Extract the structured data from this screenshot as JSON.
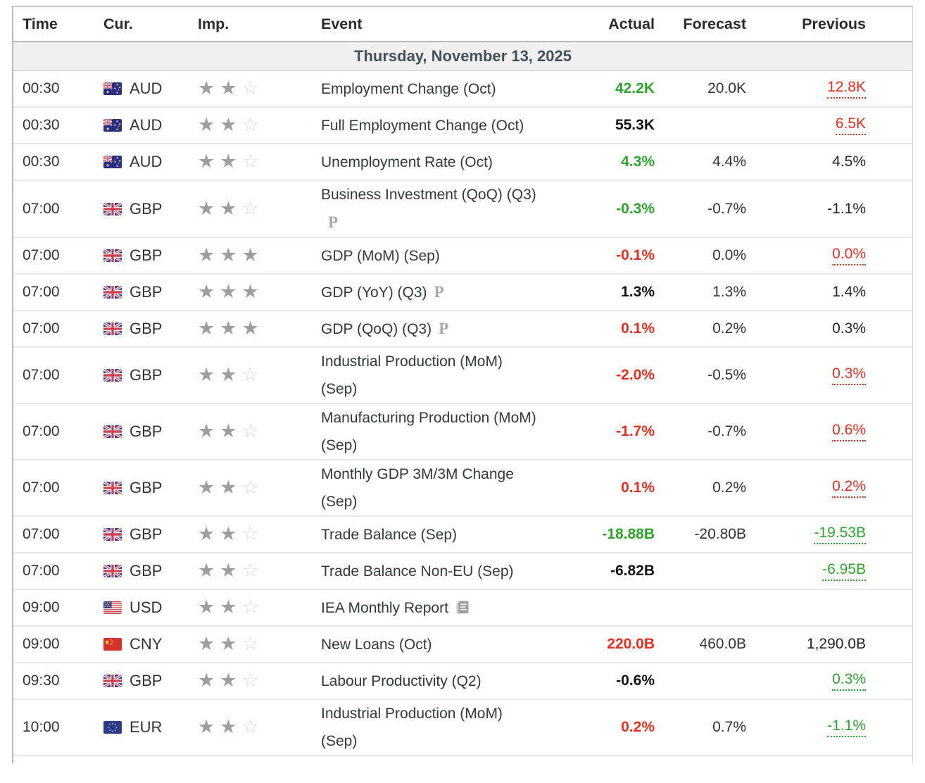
{
  "table": {
    "columns": {
      "time": "Time",
      "currency": "Cur.",
      "importance": "Imp.",
      "event": "Event",
      "actual": "Actual",
      "forecast": "Forecast",
      "previous": "Previous"
    },
    "date_header": "Thursday, November 13, 2025",
    "rows": [
      {
        "time": "00:30",
        "currency": "AUD",
        "flag": "australia-flag",
        "importance": 2,
        "event_lines": [
          "Employment Change (Oct)"
        ],
        "suffix": null,
        "actual": {
          "text": "42.2K",
          "color": "green"
        },
        "forecast": "20.0K",
        "previous": {
          "text": "12.8K",
          "color": "red",
          "underline": true
        }
      },
      {
        "time": "00:30",
        "currency": "AUD",
        "flag": "australia-flag",
        "importance": 2,
        "event_lines": [
          "Full Employment Change (Oct)"
        ],
        "suffix": null,
        "actual": {
          "text": "55.3K",
          "color": "black"
        },
        "forecast": "",
        "previous": {
          "text": "6.5K",
          "color": "red",
          "underline": true
        }
      },
      {
        "time": "00:30",
        "currency": "AUD",
        "flag": "australia-flag",
        "importance": 2,
        "event_lines": [
          "Unemployment Rate (Oct)"
        ],
        "suffix": null,
        "actual": {
          "text": "4.3%",
          "color": "green"
        },
        "forecast": "4.4%",
        "previous": {
          "text": "4.5%",
          "color": "black",
          "underline": false
        }
      },
      {
        "time": "07:00",
        "currency": "GBP",
        "flag": "uk-flag",
        "importance": 2,
        "event_lines": [
          "Business Investment (QoQ) (Q3)",
          ""
        ],
        "suffix": "P",
        "actual": {
          "text": "-0.3%",
          "color": "green"
        },
        "forecast": "-0.7%",
        "previous": {
          "text": "-1.1%",
          "color": "black",
          "underline": false
        }
      },
      {
        "time": "07:00",
        "currency": "GBP",
        "flag": "uk-flag",
        "importance": 3,
        "event_lines": [
          "GDP (MoM) (Sep)"
        ],
        "suffix": null,
        "actual": {
          "text": "-0.1%",
          "color": "red"
        },
        "forecast": "0.0%",
        "previous": {
          "text": "0.0%",
          "color": "red",
          "underline": true
        }
      },
      {
        "time": "07:00",
        "currency": "GBP",
        "flag": "uk-flag",
        "importance": 3,
        "event_lines": [
          "GDP (YoY) (Q3)"
        ],
        "suffix": "P",
        "actual": {
          "text": "1.3%",
          "color": "black"
        },
        "forecast": "1.3%",
        "previous": {
          "text": "1.4%",
          "color": "black",
          "underline": false
        }
      },
      {
        "time": "07:00",
        "currency": "GBP",
        "flag": "uk-flag",
        "importance": 3,
        "event_lines": [
          "GDP (QoQ) (Q3)"
        ],
        "suffix": "P",
        "actual": {
          "text": "0.1%",
          "color": "red"
        },
        "forecast": "0.2%",
        "previous": {
          "text": "0.3%",
          "color": "black",
          "underline": false
        }
      },
      {
        "time": "07:00",
        "currency": "GBP",
        "flag": "uk-flag",
        "importance": 2,
        "event_lines": [
          "Industrial Production (MoM)",
          "(Sep)"
        ],
        "suffix": null,
        "actual": {
          "text": "-2.0%",
          "color": "red"
        },
        "forecast": "-0.5%",
        "previous": {
          "text": "0.3%",
          "color": "red",
          "underline": true
        }
      },
      {
        "time": "07:00",
        "currency": "GBP",
        "flag": "uk-flag",
        "importance": 2,
        "event_lines": [
          "Manufacturing Production (MoM)",
          "(Sep)"
        ],
        "suffix": null,
        "actual": {
          "text": "-1.7%",
          "color": "red"
        },
        "forecast": "-0.7%",
        "previous": {
          "text": "0.6%",
          "color": "red",
          "underline": true
        }
      },
      {
        "time": "07:00",
        "currency": "GBP",
        "flag": "uk-flag",
        "importance": 2,
        "event_lines": [
          "Monthly GDP 3M/3M Change",
          "(Sep)"
        ],
        "suffix": null,
        "actual": {
          "text": "0.1%",
          "color": "red"
        },
        "forecast": "0.2%",
        "previous": {
          "text": "0.2%",
          "color": "red",
          "underline": true
        }
      },
      {
        "time": "07:00",
        "currency": "GBP",
        "flag": "uk-flag",
        "importance": 2,
        "event_lines": [
          "Trade Balance (Sep)"
        ],
        "suffix": null,
        "actual": {
          "text": "-18.88B",
          "color": "green"
        },
        "forecast": "-20.80B",
        "previous": {
          "text": "-19.53B",
          "color": "green",
          "underline": true
        }
      },
      {
        "time": "07:00",
        "currency": "GBP",
        "flag": "uk-flag",
        "importance": 2,
        "event_lines": [
          "Trade Balance Non-EU (Sep)"
        ],
        "suffix": null,
        "actual": {
          "text": "-6.82B",
          "color": "black"
        },
        "forecast": "",
        "previous": {
          "text": "-6.95B",
          "color": "green",
          "underline": true
        }
      },
      {
        "time": "09:00",
        "currency": "USD",
        "flag": "usa-flag",
        "importance": 2,
        "event_lines": [
          "IEA Monthly Report"
        ],
        "suffix": "report",
        "actual": {
          "text": "",
          "color": "black"
        },
        "forecast": "",
        "previous": {
          "text": "",
          "color": "black",
          "underline": false
        }
      },
      {
        "time": "09:00",
        "currency": "CNY",
        "flag": "china-flag",
        "importance": 2,
        "event_lines": [
          "New Loans (Oct)"
        ],
        "suffix": null,
        "actual": {
          "text": "220.0B",
          "color": "red"
        },
        "forecast": "460.0B",
        "previous": {
          "text": "1,290.0B",
          "color": "black",
          "underline": false
        }
      },
      {
        "time": "09:30",
        "currency": "GBP",
        "flag": "uk-flag",
        "importance": 2,
        "event_lines": [
          "Labour Productivity (Q2)"
        ],
        "suffix": null,
        "actual": {
          "text": "-0.6%",
          "color": "black"
        },
        "forecast": "",
        "previous": {
          "text": "0.3%",
          "color": "green",
          "underline": true
        }
      },
      {
        "time": "10:00",
        "currency": "EUR",
        "flag": "eu-flag",
        "importance": 2,
        "event_lines": [
          "Industrial Production (MoM)",
          "(Sep)"
        ],
        "suffix": null,
        "actual": {
          "text": "0.2%",
          "color": "red"
        },
        "forecast": "0.7%",
        "previous": {
          "text": "-1.1%",
          "color": "green",
          "underline": true
        }
      }
    ]
  },
  "colors": {
    "positive_green": "#2ba52b",
    "negative_red": "#ec2c1d",
    "date_band_bg": "#f0f0f0",
    "date_text": "#43505c",
    "star_filled": "#9e9e9e",
    "star_empty": "#d8d8d8"
  }
}
